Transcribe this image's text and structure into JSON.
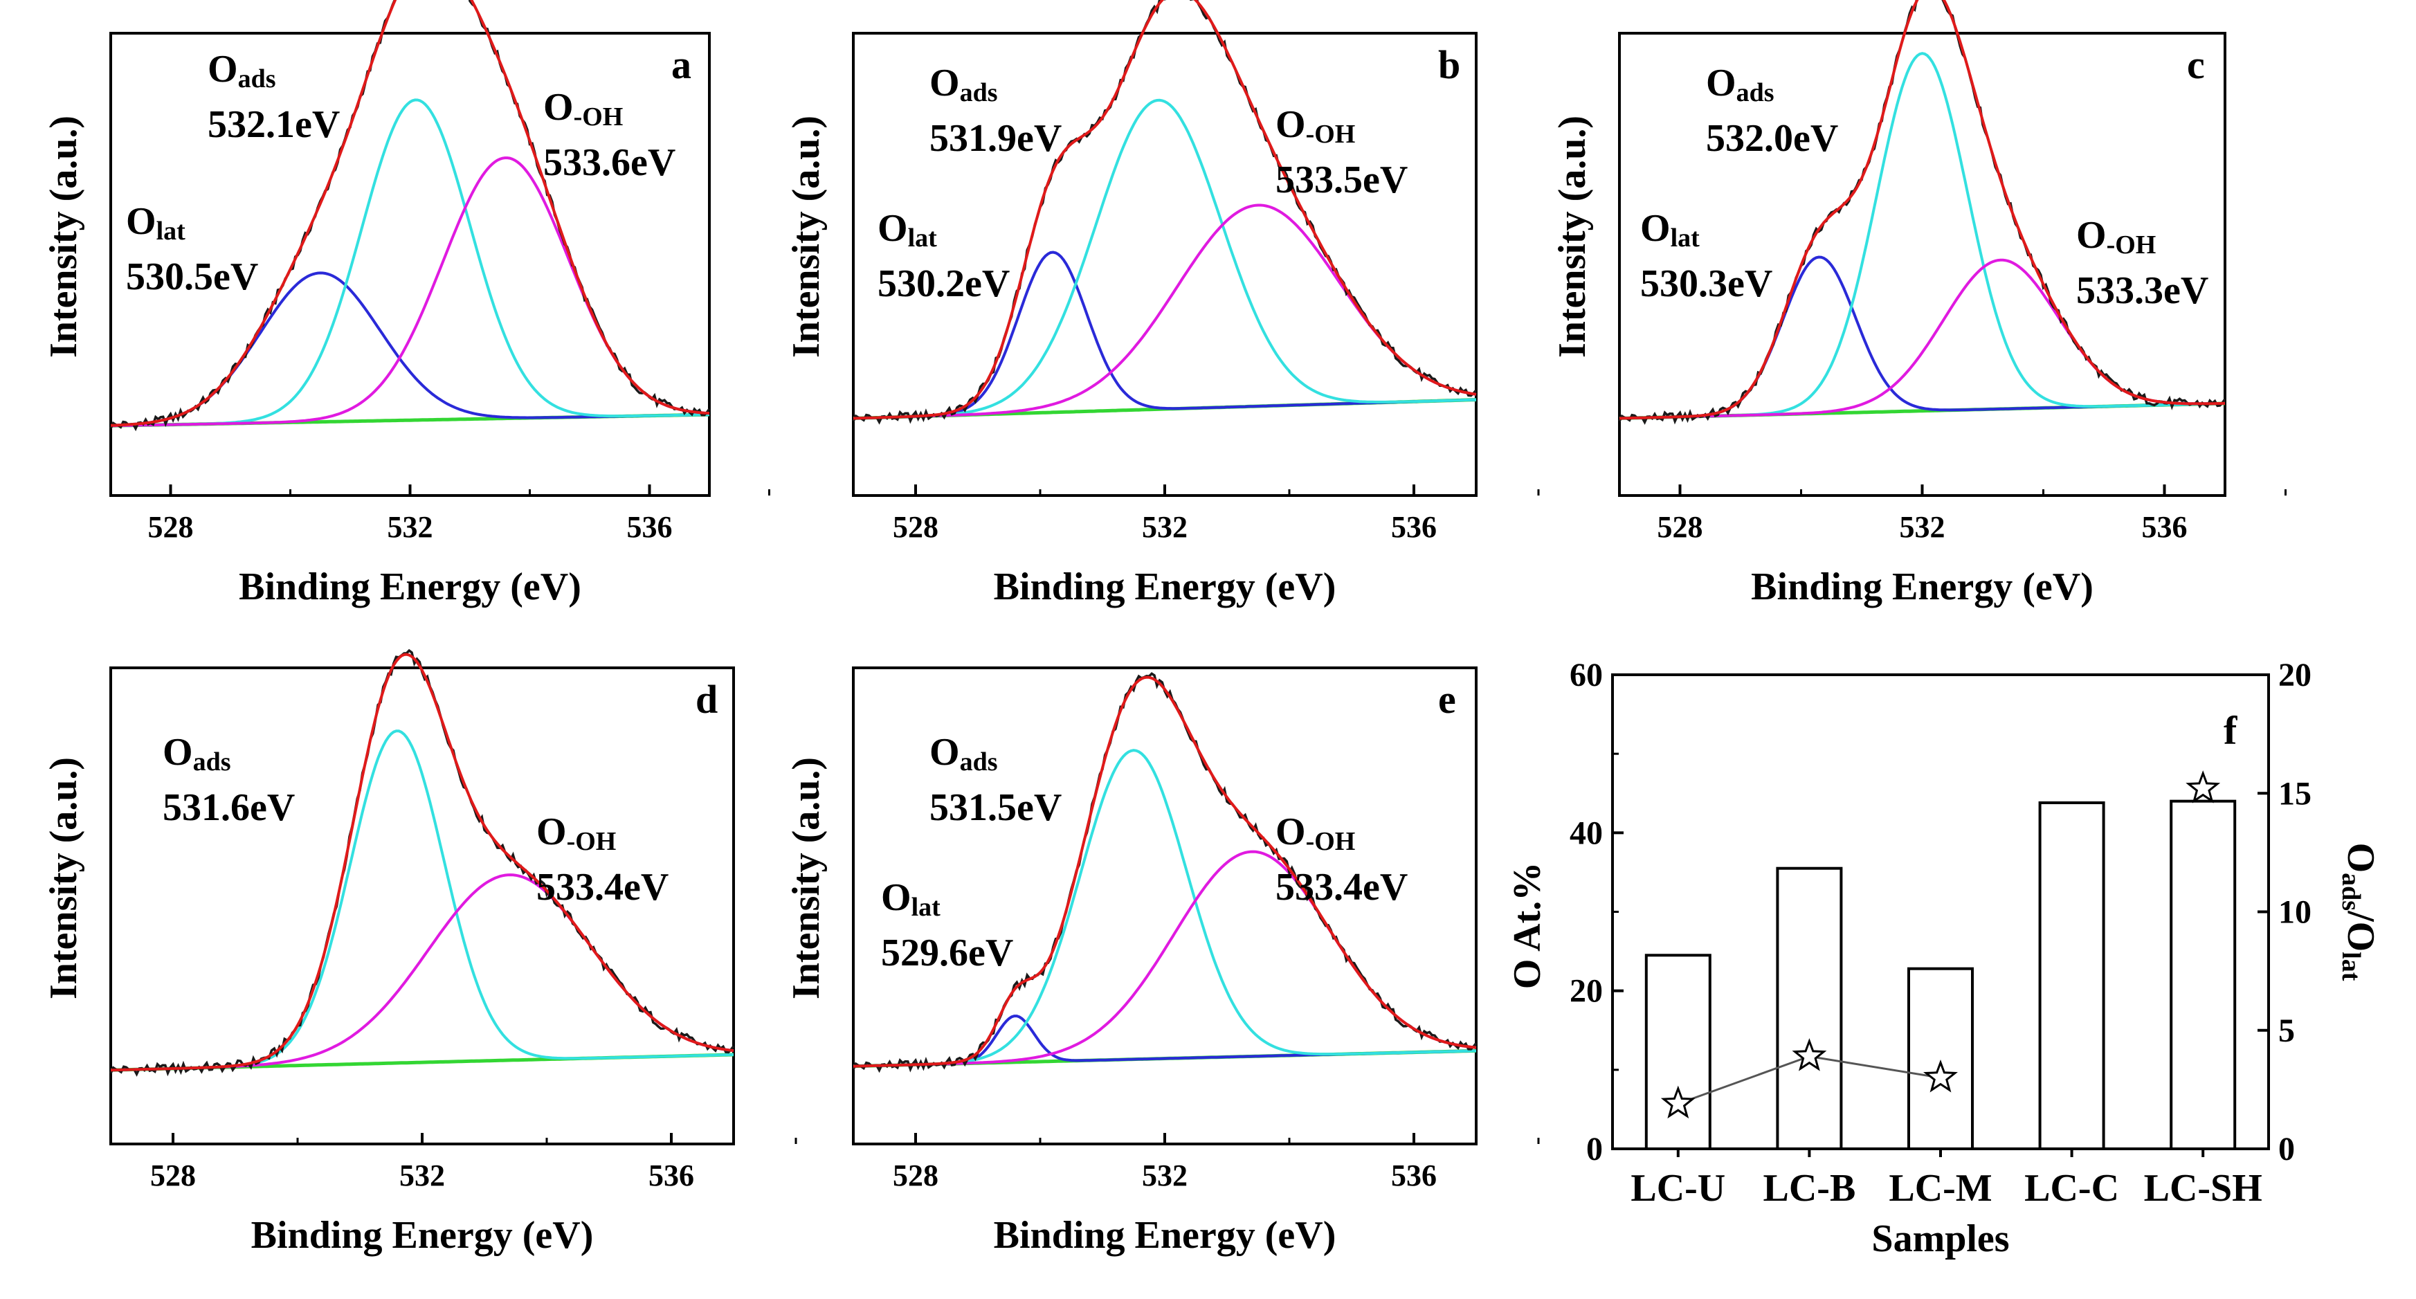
{
  "chart_data": [
    {
      "type": "line",
      "panel": "a",
      "xlabel": "Binding Energy (eV)",
      "ylabel": "Intensity (a.u.)",
      "xlim": [
        527,
        537
      ],
      "xticks": [
        "528",
        "532",
        "536"
      ],
      "baseline": [
        0.02,
        0.05
      ],
      "components": [
        {
          "name": "Olat",
          "color": "#2a2ad8",
          "center": 530.5,
          "height": 0.4,
          "width": 1.0
        },
        {
          "name": "Oads",
          "color": "#33e0e0",
          "center": 532.1,
          "height": 0.86,
          "width": 0.9
        },
        {
          "name": "O-OH",
          "color": "#e01ae0",
          "center": 533.6,
          "height": 0.7,
          "width": 1.05
        }
      ],
      "annotations": [
        {
          "main": "O",
          "sub": "ads",
          "value": "532.1eV"
        },
        {
          "main": "O",
          "sub": "-OH",
          "value": "533.6eV"
        },
        {
          "main": "O",
          "sub": "lat",
          "value": "530.5eV"
        }
      ]
    },
    {
      "type": "line",
      "panel": "b",
      "xlabel": "Binding Energy (eV)",
      "ylabel": "Intensity (a.u.)",
      "xlim": [
        527,
        537
      ],
      "xticks": [
        "528",
        "532",
        "536"
      ],
      "baseline": [
        0.04,
        0.09
      ],
      "components": [
        {
          "name": "Olat",
          "color": "#2a2ad8",
          "center": 530.2,
          "height": 0.43,
          "width": 0.55
        },
        {
          "name": "Oads",
          "color": "#33e0e0",
          "center": 531.9,
          "height": 0.83,
          "width": 1.0
        },
        {
          "name": "O-OH",
          "color": "#e01ae0",
          "center": 533.5,
          "height": 0.54,
          "width": 1.3
        }
      ],
      "annotations": [
        {
          "main": "O",
          "sub": "ads",
          "value": "531.9eV"
        },
        {
          "main": "O",
          "sub": "-OH",
          "value": "533.5eV"
        },
        {
          "main": "O",
          "sub": "lat",
          "value": "530.2eV"
        }
      ]
    },
    {
      "type": "line",
      "panel": "c",
      "xlabel": "Binding Energy (eV)",
      "ylabel": "Intensity (a.u.)",
      "xlim": [
        527,
        537
      ],
      "xticks": [
        "528",
        "532",
        "536"
      ],
      "baseline": [
        0.04,
        0.08
      ],
      "components": [
        {
          "name": "Olat",
          "color": "#2a2ad8",
          "center": 530.3,
          "height": 0.42,
          "width": 0.6
        },
        {
          "name": "Oads",
          "color": "#33e0e0",
          "center": 532.0,
          "height": 0.96,
          "width": 0.75
        },
        {
          "name": "O-OH",
          "color": "#e01ae0",
          "center": 533.3,
          "height": 0.4,
          "width": 0.95
        }
      ],
      "annotations": [
        {
          "main": "O",
          "sub": "ads",
          "value": "532.0eV"
        },
        {
          "main": "O",
          "sub": "-OH",
          "value": "533.3eV"
        },
        {
          "main": "O",
          "sub": "lat",
          "value": "530.3eV"
        }
      ]
    },
    {
      "type": "line",
      "panel": "d",
      "xlabel": "Binding Energy (eV)",
      "ylabel": "Intensity (a.u.)",
      "xlim": [
        527,
        537
      ],
      "xticks": [
        "528",
        "532",
        "536"
      ],
      "baseline": [
        0.03,
        0.07
      ],
      "components": [
        {
          "name": "Oads",
          "color": "#33e0e0",
          "center": 531.6,
          "height": 0.86,
          "width": 0.75
        },
        {
          "name": "O-OH",
          "color": "#e01ae0",
          "center": 533.4,
          "height": 0.48,
          "width": 1.3
        }
      ],
      "annotations": [
        {
          "main": "O",
          "sub": "ads",
          "value": "531.6eV"
        },
        {
          "main": "O",
          "sub": "-OH",
          "value": "533.4eV"
        }
      ]
    },
    {
      "type": "line",
      "panel": "e",
      "xlabel": "Binding Energy (eV)",
      "ylabel": "Intensity (a.u.)",
      "xlim": [
        527,
        537
      ],
      "xticks": [
        "528",
        "532",
        "536"
      ],
      "baseline": [
        0.04,
        0.08
      ],
      "components": [
        {
          "name": "Olat",
          "color": "#2a2ad8",
          "center": 529.6,
          "height": 0.12,
          "width": 0.3
        },
        {
          "name": "Oads",
          "color": "#33e0e0",
          "center": 531.5,
          "height": 0.8,
          "width": 0.85
        },
        {
          "name": "O-OH",
          "color": "#e01ae0",
          "center": 533.4,
          "height": 0.53,
          "width": 1.25
        }
      ],
      "annotations": [
        {
          "main": "O",
          "sub": "ads",
          "value": "531.5eV"
        },
        {
          "main": "O",
          "sub": "-OH",
          "value": "533.4eV"
        },
        {
          "main": "O",
          "sub": "lat",
          "value": "529.6eV"
        }
      ]
    },
    {
      "type": "bar",
      "panel": "f",
      "categories": [
        "LC-U",
        "LC-B",
        "LC-M",
        "LC-C",
        "LC-SH"
      ],
      "xlabel": "Samples",
      "ylabel": "O At.%",
      "ylim": [
        0,
        60
      ],
      "yticks": [
        "0",
        "20",
        "40",
        "60"
      ],
      "values": [
        24.5,
        35.5,
        22.8,
        43.8,
        44.0
      ],
      "secondary": {
        "ylabel_main": "O",
        "ylabel_sub1": "ads",
        "ylabel_mid": "/O",
        "ylabel_sub2": "lat",
        "ylim": [
          0,
          20
        ],
        "yticks": [
          "0",
          "5",
          "10",
          "15",
          "20"
        ],
        "points": [
          {
            "category": "LC-U",
            "value": 1.9
          },
          {
            "category": "LC-B",
            "value": 3.9
          },
          {
            "category": "LC-M",
            "value": 3.0
          },
          {
            "category": "LC-SH",
            "value": 15.2
          }
        ]
      }
    }
  ]
}
